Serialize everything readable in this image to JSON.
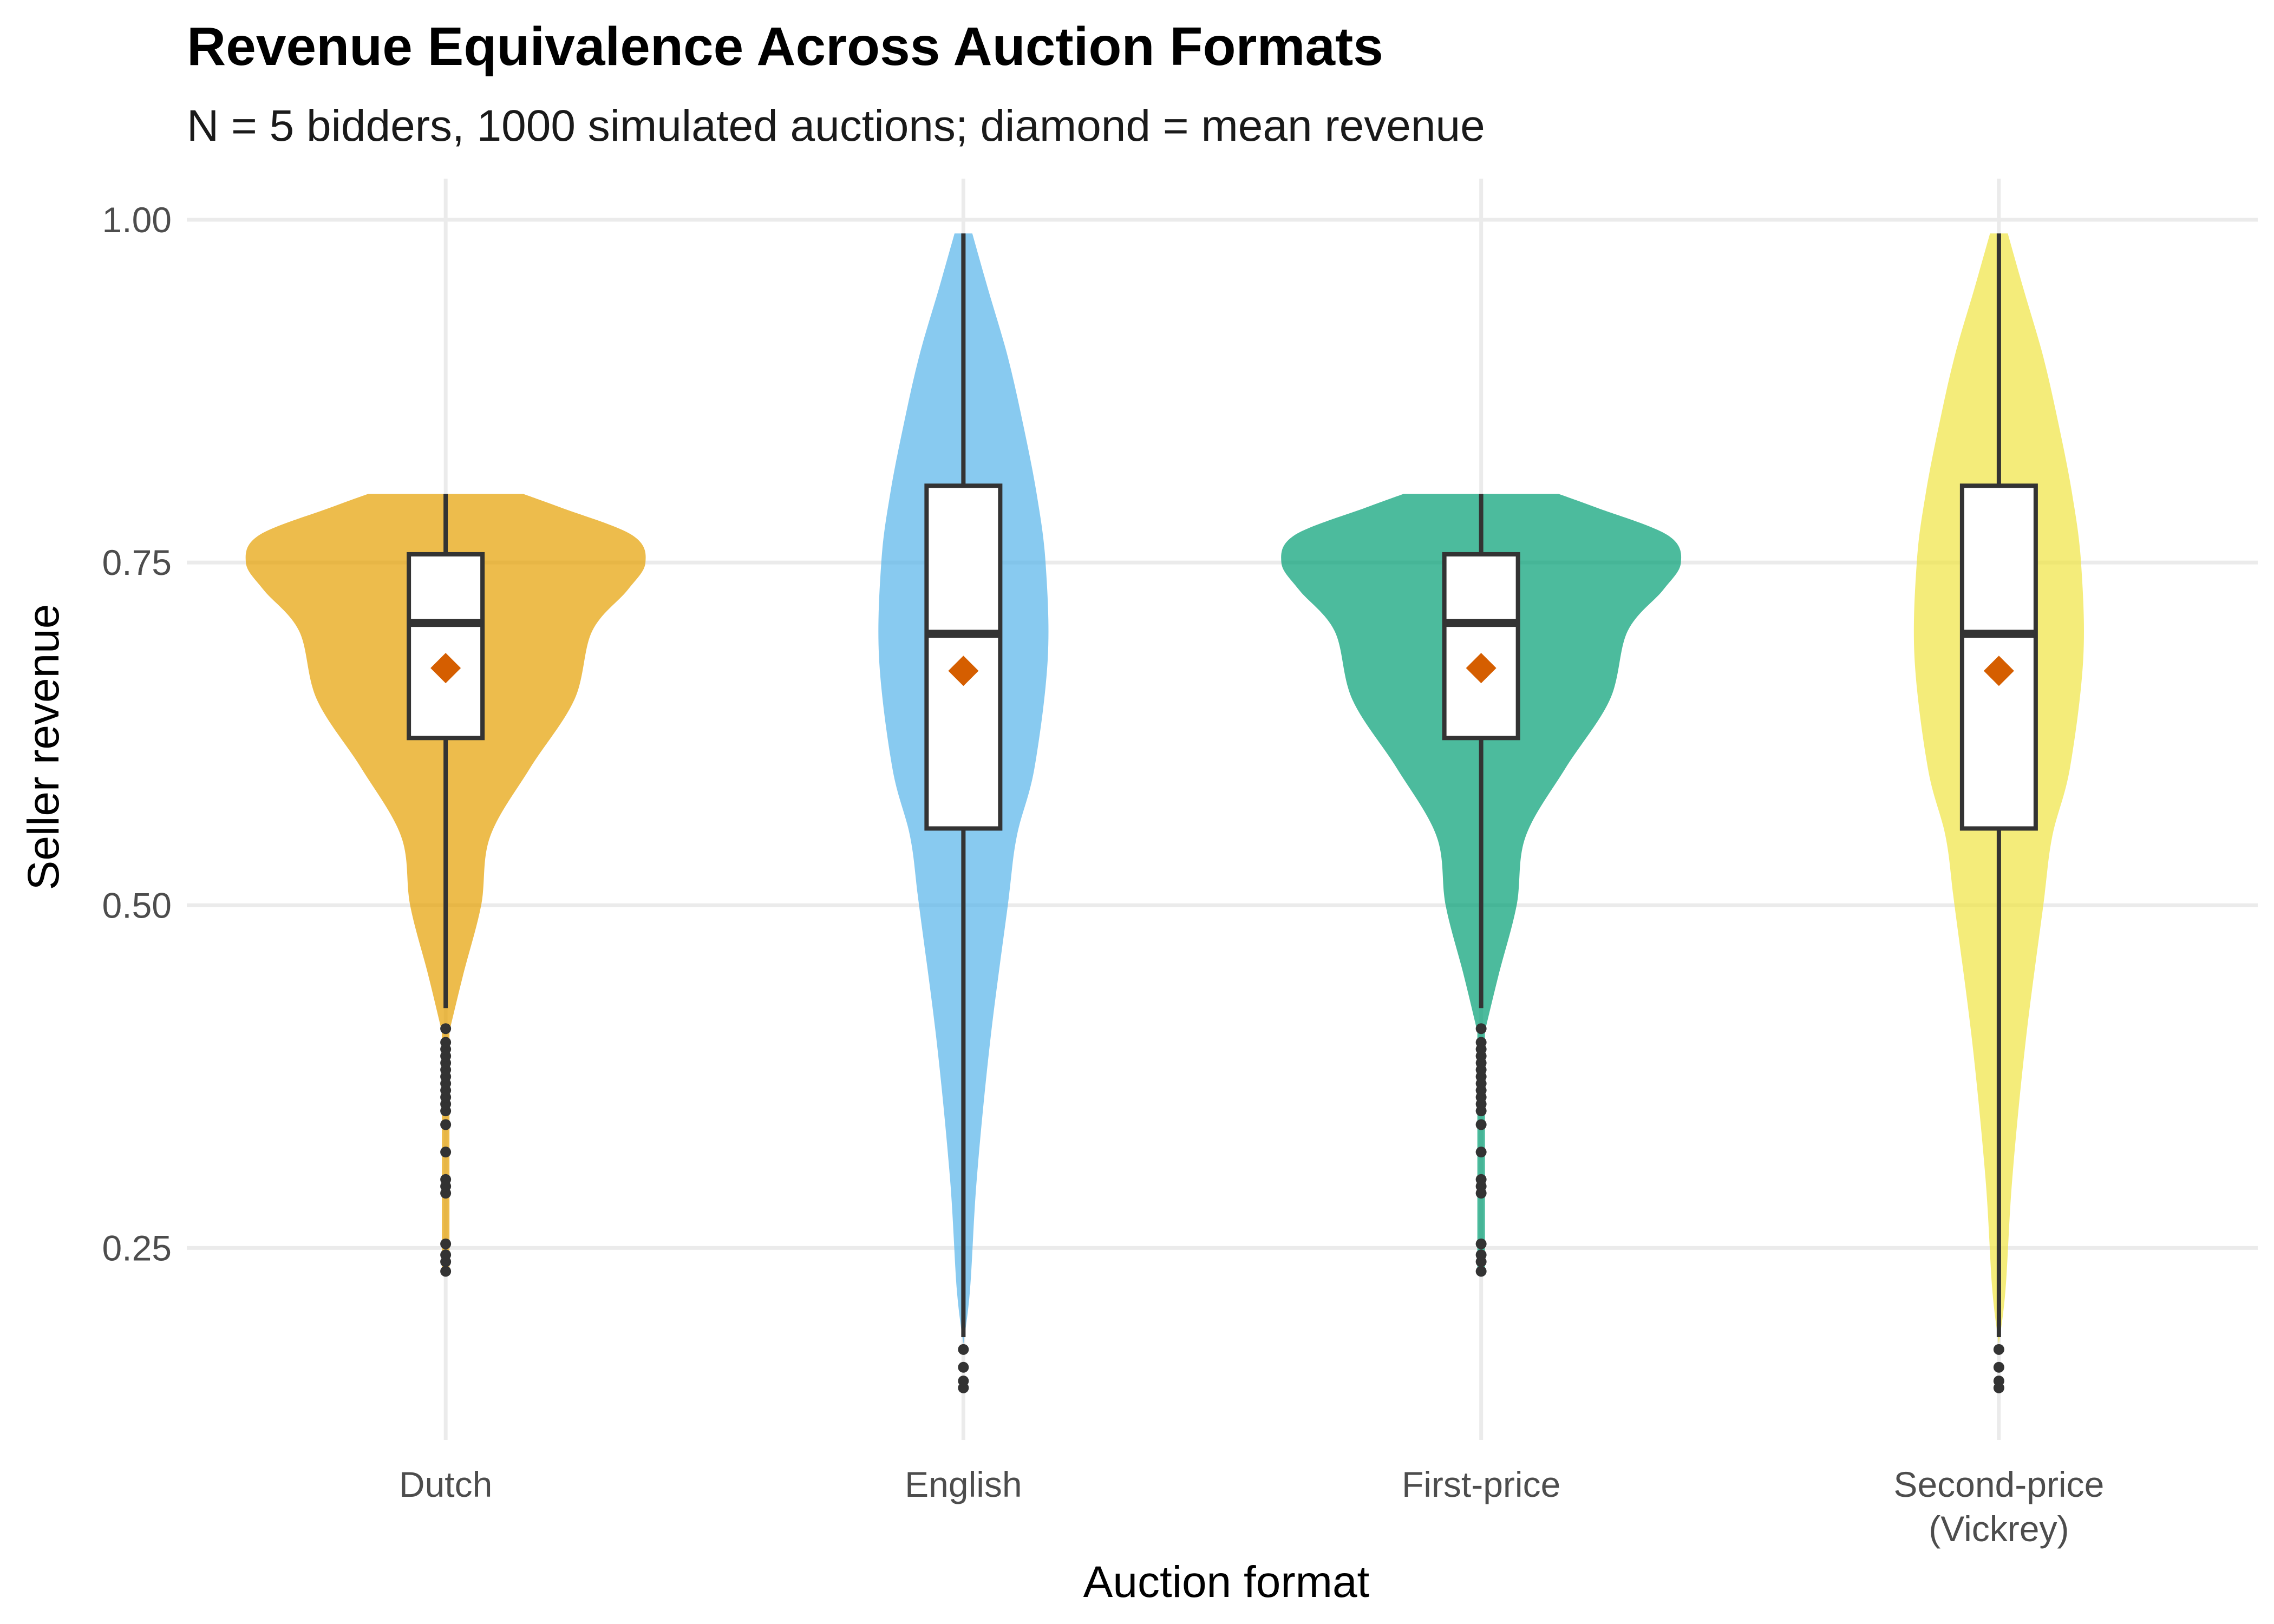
{
  "title": "Revenue Equivalence Across Auction Formats",
  "subtitle": "N = 5 bidders, 1000 simulated auctions; diamond = mean revenue",
  "chart_data": {
    "type": "violin",
    "title": "Revenue Equivalence Across Auction Formats",
    "subtitle": "N = 5 bidders, 1000 simulated auctions; diamond = mean revenue",
    "xlabel": "Auction format",
    "ylabel": "Seller revenue",
    "ylim": [
      0.11,
      1.03
    ],
    "yticks": [
      0.25,
      0.5,
      0.75,
      1.0
    ],
    "ytick_labels": [
      "0.25",
      "0.50",
      "0.75",
      "1.00"
    ],
    "grid": true,
    "legend": "none",
    "mean_marker": "diamond",
    "mean_color": "#D55E00",
    "categories": [
      {
        "label": [
          "Dutch"
        ],
        "color": "#E69F00",
        "density": [
          [
            0.41,
            0.02
          ],
          [
            0.45,
            0.08
          ],
          [
            0.5,
            0.16
          ],
          [
            0.55,
            0.2
          ],
          [
            0.6,
            0.38
          ],
          [
            0.65,
            0.58
          ],
          [
            0.7,
            0.66
          ],
          [
            0.73,
            0.82
          ],
          [
            0.75,
            0.9
          ],
          [
            0.77,
            0.84
          ],
          [
            0.79,
            0.52
          ],
          [
            0.8,
            0.35
          ]
        ],
        "tail": [
          0.23,
          0.41
        ],
        "box": {
          "q1": 0.622,
          "median": 0.706,
          "q3": 0.756,
          "whisker_low": 0.425,
          "whisker_high": 0.8
        },
        "mean": 0.673,
        "outliers": [
          0.233,
          0.24,
          0.245,
          0.253,
          0.29,
          0.295,
          0.3,
          0.32,
          0.34,
          0.35,
          0.355,
          0.36,
          0.365,
          0.37,
          0.375,
          0.38,
          0.385,
          0.39,
          0.395,
          0.4,
          0.41
        ]
      },
      {
        "label": [
          "English"
        ],
        "color": "#56B4E9",
        "density": [
          [
            0.18,
            0.0
          ],
          [
            0.22,
            0.03
          ],
          [
            0.3,
            0.06
          ],
          [
            0.4,
            0.12
          ],
          [
            0.5,
            0.2
          ],
          [
            0.55,
            0.24
          ],
          [
            0.6,
            0.32
          ],
          [
            0.68,
            0.38
          ],
          [
            0.75,
            0.37
          ],
          [
            0.8,
            0.33
          ],
          [
            0.85,
            0.27
          ],
          [
            0.9,
            0.2
          ],
          [
            0.95,
            0.11
          ],
          [
            0.99,
            0.04
          ]
        ],
        "tail": [],
        "box": {
          "q1": 0.556,
          "median": 0.698,
          "q3": 0.806,
          "whisker_low": 0.185,
          "whisker_high": 0.99
        },
        "mean": 0.671,
        "outliers": [
          0.148,
          0.153,
          0.163,
          0.176
        ]
      },
      {
        "label": [
          "First-price"
        ],
        "color": "#009E73",
        "density": [
          [
            0.41,
            0.02
          ],
          [
            0.45,
            0.08
          ],
          [
            0.5,
            0.16
          ],
          [
            0.55,
            0.2
          ],
          [
            0.6,
            0.38
          ],
          [
            0.65,
            0.58
          ],
          [
            0.7,
            0.66
          ],
          [
            0.73,
            0.82
          ],
          [
            0.75,
            0.9
          ],
          [
            0.77,
            0.84
          ],
          [
            0.79,
            0.52
          ],
          [
            0.8,
            0.35
          ]
        ],
        "tail": [
          0.23,
          0.41
        ],
        "box": {
          "q1": 0.622,
          "median": 0.706,
          "q3": 0.756,
          "whisker_low": 0.425,
          "whisker_high": 0.8
        },
        "mean": 0.673,
        "outliers": [
          0.233,
          0.24,
          0.245,
          0.253,
          0.29,
          0.295,
          0.3,
          0.32,
          0.34,
          0.35,
          0.355,
          0.36,
          0.365,
          0.37,
          0.375,
          0.38,
          0.385,
          0.39,
          0.395,
          0.4,
          0.41
        ]
      },
      {
        "label": [
          "Second-price",
          "(Vickrey)"
        ],
        "color": "#F0E442",
        "density": [
          [
            0.18,
            0.0
          ],
          [
            0.22,
            0.03
          ],
          [
            0.3,
            0.06
          ],
          [
            0.4,
            0.12
          ],
          [
            0.5,
            0.2
          ],
          [
            0.55,
            0.24
          ],
          [
            0.6,
            0.32
          ],
          [
            0.68,
            0.38
          ],
          [
            0.75,
            0.37
          ],
          [
            0.8,
            0.33
          ],
          [
            0.85,
            0.27
          ],
          [
            0.9,
            0.2
          ],
          [
            0.95,
            0.11
          ],
          [
            0.99,
            0.04
          ]
        ],
        "tail": [],
        "box": {
          "q1": 0.556,
          "median": 0.698,
          "q3": 0.806,
          "whisker_low": 0.185,
          "whisker_high": 0.99
        },
        "mean": 0.671,
        "outliers": [
          0.148,
          0.153,
          0.163,
          0.176
        ]
      }
    ]
  }
}
